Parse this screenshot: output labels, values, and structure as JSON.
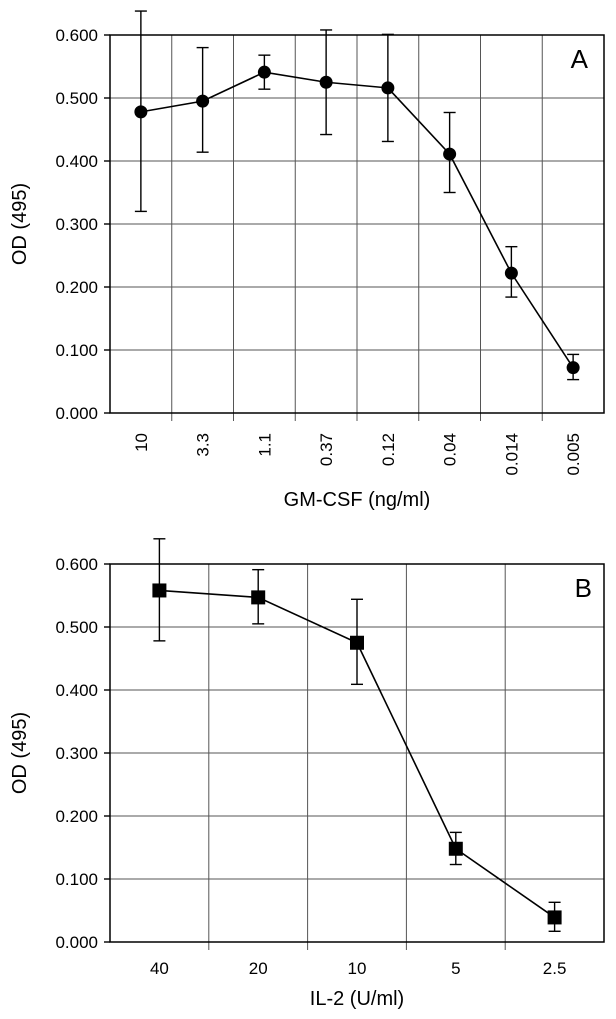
{
  "chart_data": [
    {
      "type": "line",
      "panel_label": "A",
      "title": "",
      "xlabel": "GM-CSF (ng/ml)",
      "ylabel": "OD (495)",
      "ylim": [
        0,
        0.6
      ],
      "y_ticks": [
        "0.000",
        "0.100",
        "0.200",
        "0.300",
        "0.400",
        "0.500",
        "0.600"
      ],
      "grid": true,
      "marker": "circle",
      "categories": [
        "10",
        "3.3",
        "1.1",
        "0.37",
        "0.12",
        "0.04",
        "0.014",
        "0.005"
      ],
      "series": [
        {
          "values": [
            0.478,
            0.495,
            0.541,
            0.525,
            0.516,
            0.411,
            0.222,
            0.072
          ],
          "err_upper": [
            0.638,
            0.58,
            0.568,
            0.608,
            0.601,
            0.477,
            0.264,
            0.093
          ],
          "err_lower": [
            0.32,
            0.414,
            0.514,
            0.442,
            0.431,
            0.35,
            0.184,
            0.053
          ]
        }
      ]
    },
    {
      "type": "line",
      "panel_label": "B",
      "title": "",
      "xlabel": "IL-2 (U/ml)",
      "ylabel": "OD (495)",
      "ylim": [
        0,
        0.6
      ],
      "y_ticks": [
        "0.000",
        "0.100",
        "0.200",
        "0.300",
        "0.400",
        "0.500",
        "0.600"
      ],
      "grid": true,
      "marker": "square",
      "categories": [
        "40",
        "20",
        "10",
        "5",
        "2.5"
      ],
      "series": [
        {
          "values": [
            0.558,
            0.547,
            0.475,
            0.148,
            0.039
          ],
          "err_upper": [
            0.64,
            0.591,
            0.544,
            0.174,
            0.063
          ],
          "err_lower": [
            0.478,
            0.505,
            0.409,
            0.123,
            0.017
          ]
        }
      ]
    }
  ]
}
